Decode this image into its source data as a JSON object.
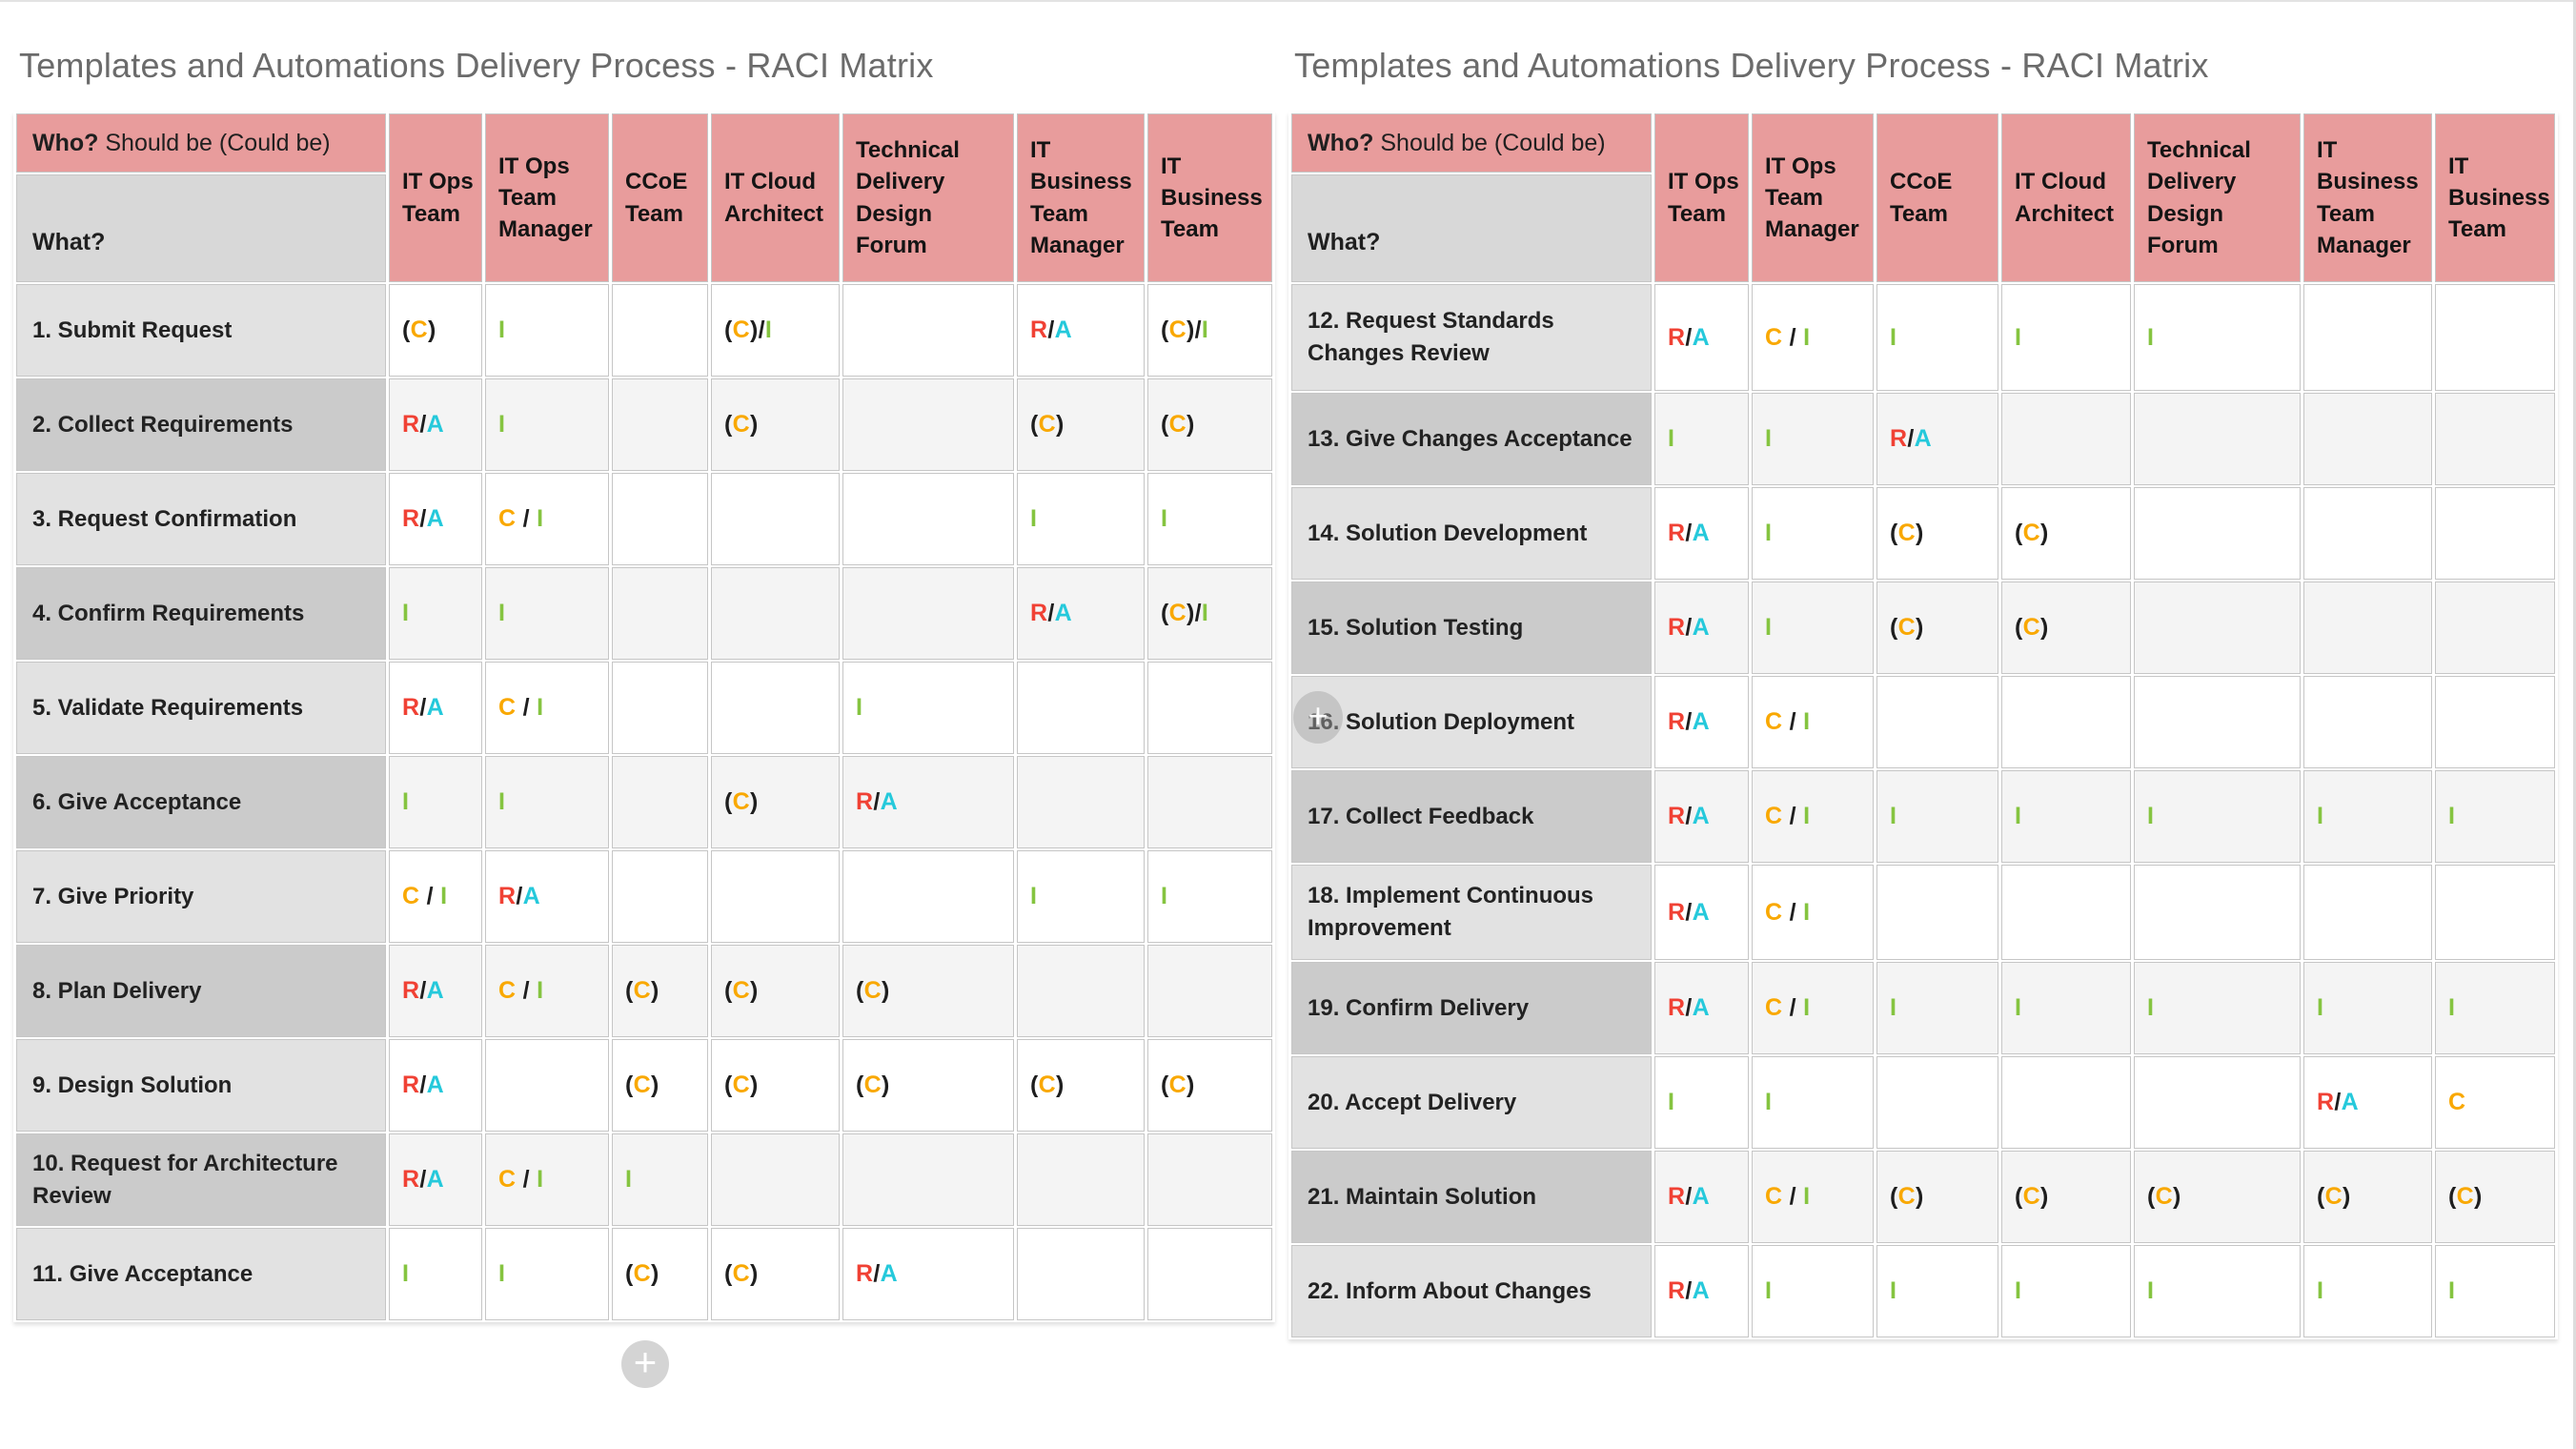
{
  "colors": {
    "R": "#F04134",
    "A": "#25C9DB",
    "C": "#F9A800",
    "I": "#85C440",
    "punctuation": "#1E1E1E",
    "header_pink": "#E89C9C",
    "corner_gray": "#D8D8D8",
    "label_light": "#E2E2E2",
    "label_dark": "#CBCBCB",
    "cell_light": "#FFFFFF",
    "cell_dark": "#F4F4F4",
    "border": "#C6C6C6",
    "title_text": "#6B6B6B"
  },
  "buttons": {
    "add_item": "+",
    "ghost_add": "+"
  },
  "tables": [
    {
      "title": "Templates and Automations Delivery Process  - RACI Matrix",
      "corner": {
        "who_bold": "Who?",
        "who_rest": "Should be (Could be)",
        "what": "What?"
      },
      "columns": [
        "IT Ops Team",
        "IT Ops Team Manager",
        "CCoE Team",
        "IT Cloud Architect",
        "Technical Delivery Design Forum",
        "IT Business Team Manager",
        "IT Business Team"
      ],
      "rows": [
        {
          "label": "1. Submit Request",
          "cells": [
            "(C)",
            "I",
            "",
            "(C)/I",
            "",
            "R/A",
            "(C)/I"
          ]
        },
        {
          "label": "2. Collect Requirements",
          "cells": [
            "R/A",
            "I",
            "",
            "(C)",
            "",
            "(C)",
            "(C)"
          ]
        },
        {
          "label": "3. Request Confirmation",
          "cells": [
            "R/A",
            "C / I",
            "",
            "",
            "",
            "I",
            "I"
          ]
        },
        {
          "label": "4. Confirm Requirements",
          "cells": [
            "I",
            "I",
            "",
            "",
            "",
            "R/A",
            "(C)/I"
          ]
        },
        {
          "label": "5. Validate Requirements",
          "cells": [
            "R/A",
            "C / I",
            "",
            "",
            "I",
            "",
            ""
          ]
        },
        {
          "label": "6. Give Acceptance",
          "cells": [
            "I",
            "I",
            "",
            "(C)",
            "R/A",
            "",
            ""
          ]
        },
        {
          "label": "7. Give Priority",
          "cells": [
            "C / I",
            "R/A",
            "",
            "",
            "",
            "I",
            "I"
          ]
        },
        {
          "label": "8. Plan Delivery",
          "cells": [
            "R/A",
            "C / I",
            "(C)",
            "(C)",
            "(C)",
            "",
            ""
          ]
        },
        {
          "label": "9. Design Solution",
          "cells": [
            "R/A",
            "",
            "(C)",
            "(C)",
            "(C)",
            "(C)",
            "(C)"
          ]
        },
        {
          "label": "10. Request for Architecture Review",
          "cells": [
            "R/A",
            "C / I",
            "I",
            "",
            "",
            "",
            ""
          ]
        },
        {
          "label": "11. Give Acceptance",
          "cells": [
            "I",
            "I",
            "(C)",
            "(C)",
            "R/A",
            "",
            ""
          ]
        }
      ]
    },
    {
      "title": "Templates and Automations Delivery Process - RACI Matrix",
      "corner": {
        "who_bold": "Who?",
        "who_rest": "Should be (Could be)",
        "what": "What?"
      },
      "columns": [
        "IT Ops Team",
        "IT Ops Team Manager",
        "CCoE Team",
        "IT Cloud Architect",
        "Technical Delivery Design Forum",
        "IT Business Team Manager",
        "IT Business Team"
      ],
      "rows": [
        {
          "label": "12. Request Standards Changes Review",
          "cells": [
            "R/A",
            "C / I",
            "I",
            "I",
            "I",
            "",
            ""
          ]
        },
        {
          "label": "13. Give Changes Acceptance",
          "cells": [
            "I",
            "I",
            "R/A",
            "",
            "",
            "",
            ""
          ]
        },
        {
          "label": "14. Solution Development",
          "cells": [
            "R/A",
            "I",
            "(C)",
            "(C)",
            "",
            "",
            ""
          ]
        },
        {
          "label": "15. Solution Testing",
          "cells": [
            "R/A",
            "I",
            "(C)",
            "(C)",
            "",
            "",
            ""
          ]
        },
        {
          "label": "16. Solution Deployment",
          "cells": [
            "R/A",
            "C / I",
            "",
            "",
            "",
            "",
            ""
          ]
        },
        {
          "label": "17. Collect Feedback",
          "cells": [
            "R/A",
            "C / I",
            "I",
            "I",
            "I",
            "I",
            "I"
          ]
        },
        {
          "label": "18. Implement Continuous Improvement",
          "cells": [
            "R/A",
            "C / I",
            "",
            "",
            "",
            "",
            ""
          ]
        },
        {
          "label": "19. Confirm Delivery",
          "cells": [
            "R/A",
            "C / I",
            "I",
            "I",
            "I",
            "I",
            "I"
          ]
        },
        {
          "label": "20. Accept Delivery",
          "cells": [
            "I",
            "I",
            "",
            "",
            "",
            "R/A",
            "C"
          ]
        },
        {
          "label": "21. Maintain Solution",
          "cells": [
            "R/A",
            "C / I",
            "(C)",
            "(C)",
            "(C)",
            "(C)",
            "(C)"
          ]
        },
        {
          "label": "22. Inform About Changes",
          "cells": [
            "R/A",
            "I",
            "I",
            "I",
            "I",
            "I",
            "I"
          ]
        }
      ]
    }
  ]
}
